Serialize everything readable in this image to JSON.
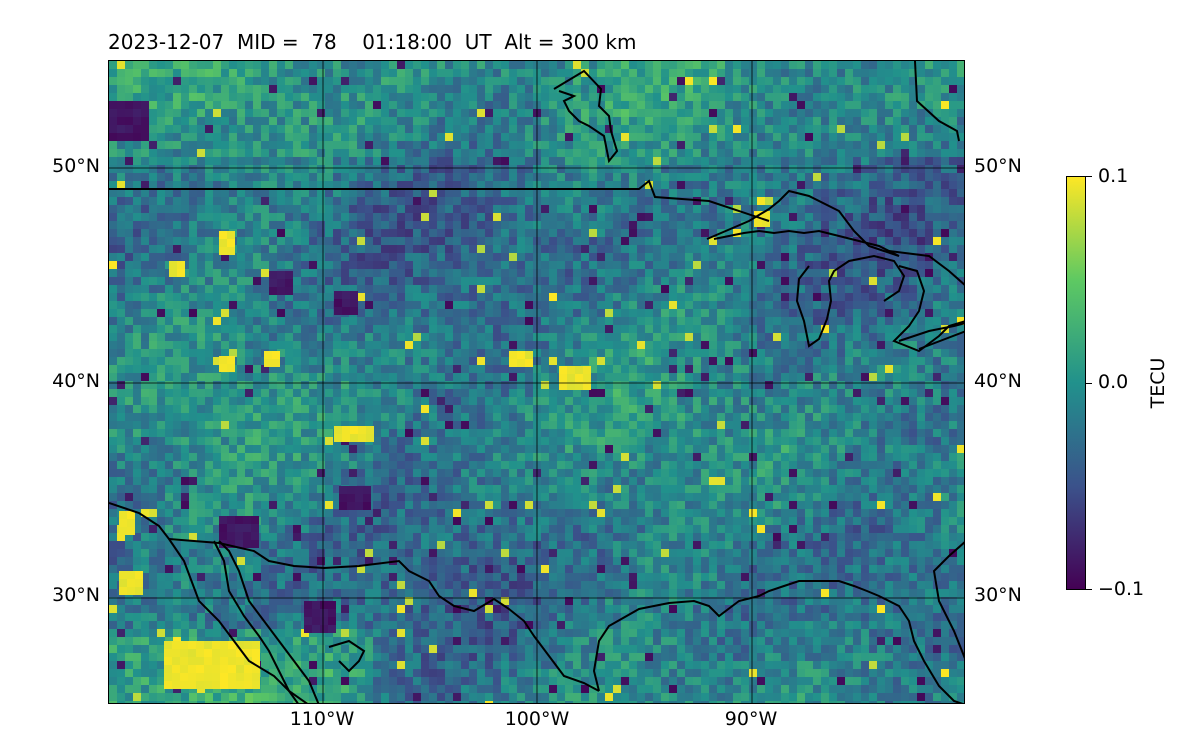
{
  "title": "2023-12-07  MID =  78    01:18:00  UT  Alt = 300 km",
  "map": {
    "lat_labels": [
      "50°N",
      "40°N",
      "30°N"
    ],
    "lon_labels": [
      "110°W",
      "100°W",
      "90°W"
    ],
    "lat_range": [
      25,
      55
    ],
    "lon_range": [
      -120,
      -80
    ],
    "gridlines": true,
    "colormap": "viridis"
  },
  "colorbar": {
    "label": "TECU",
    "ticks": [
      "0.1",
      "0.0",
      "−0.1"
    ],
    "vmin": -0.1,
    "vmax": 0.1,
    "colors": [
      "#440154",
      "#3b528b",
      "#21918c",
      "#5ec962",
      "#fde725"
    ]
  }
}
